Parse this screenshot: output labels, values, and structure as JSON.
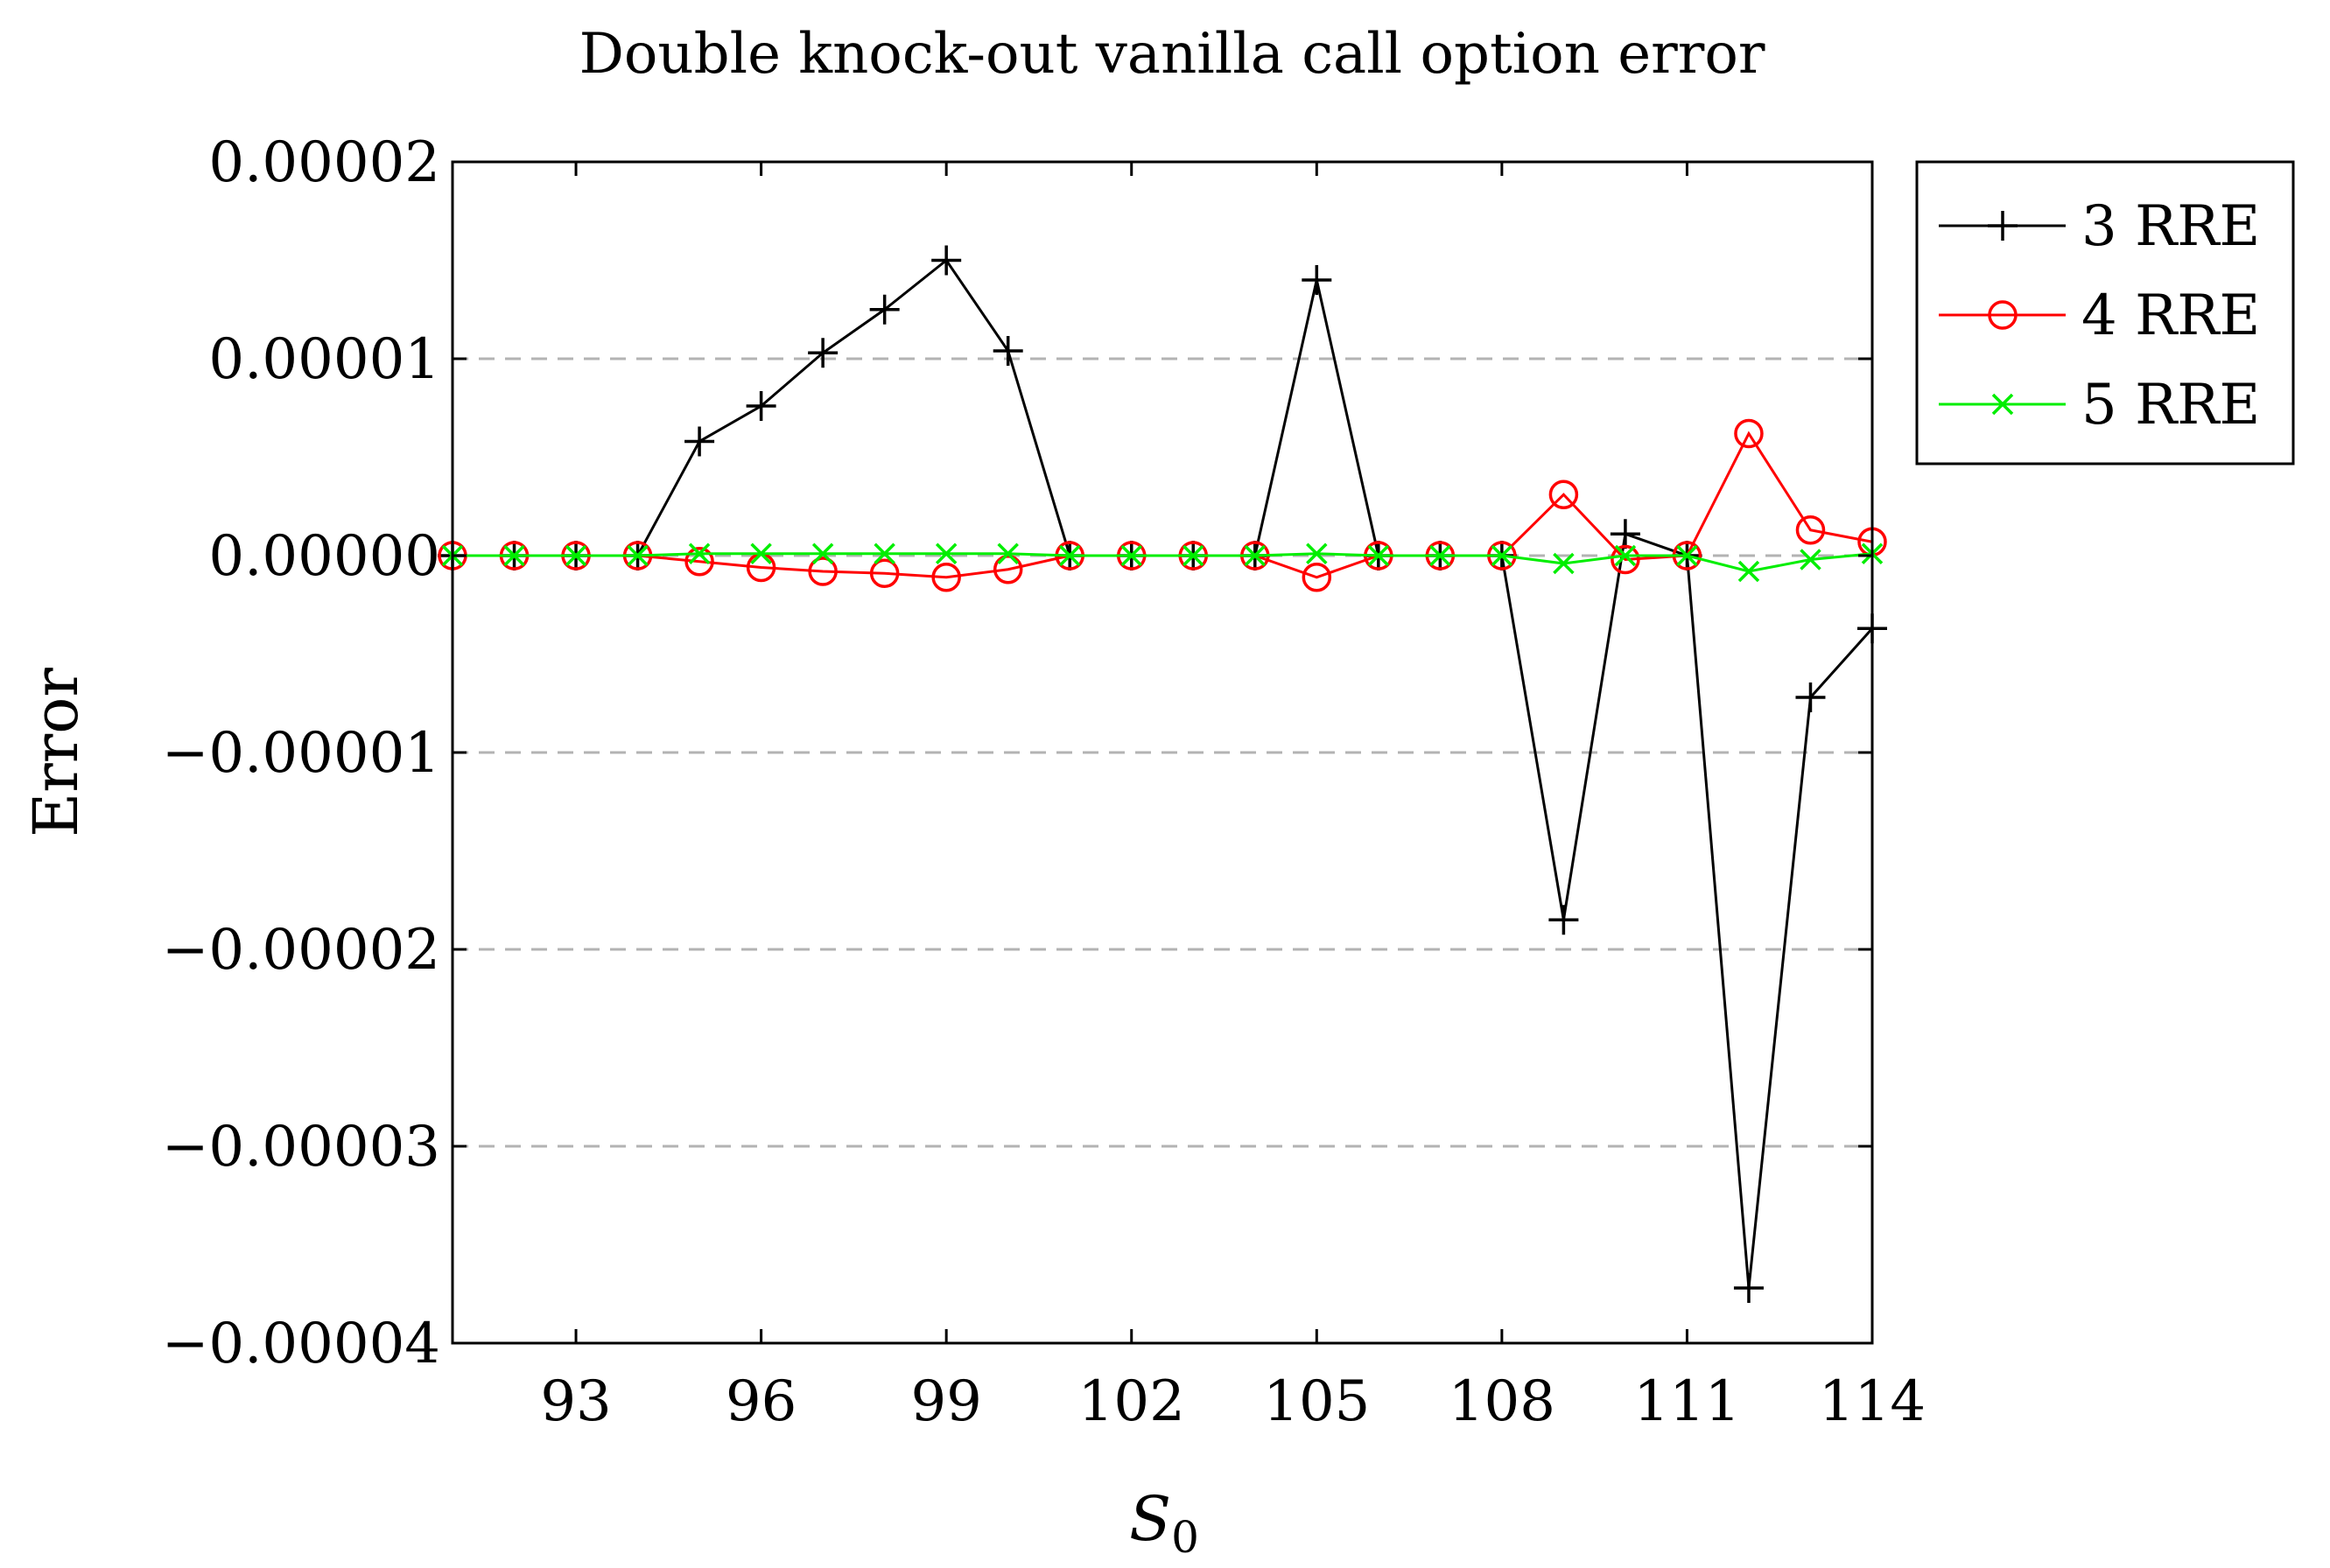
{
  "chart_data": {
    "type": "line",
    "title": "Double knock-out vanilla call option error",
    "xlabel": "S",
    "xlabel_subscript": "0",
    "ylabel": "Error",
    "xlim": [
      91,
      114
    ],
    "ylim": [
      -4e-05,
      2e-05
    ],
    "xticks": [
      93,
      96,
      99,
      102,
      105,
      108,
      111,
      114
    ],
    "yticks": [
      2e-05,
      1e-05,
      0.0,
      -1e-05,
      -2e-05,
      -3e-05,
      -4e-05
    ],
    "ytick_labels": [
      "0.00002",
      "0.00001",
      "0.00000",
      "−0.00001",
      "−0.00002",
      "−0.00003",
      "−0.00004"
    ],
    "grid": "horizontal dashed",
    "legend_position": "outside-top-right",
    "x": [
      91,
      92,
      93,
      94,
      95,
      96,
      97,
      98,
      99,
      100,
      101,
      102,
      103,
      104,
      105,
      106,
      107,
      108,
      109,
      110,
      111,
      112,
      113,
      114
    ],
    "series": [
      {
        "name": "3 RRE",
        "color": "#000000",
        "marker": "plus",
        "values": [
          0,
          0,
          0,
          0,
          5.8e-06,
          7.6e-06,
          1.03e-05,
          1.25e-05,
          1.5e-05,
          1.04e-05,
          0,
          0,
          0,
          0,
          1.4e-05,
          0,
          0,
          0,
          -1.85e-05,
          1.1e-06,
          0,
          -3.72e-05,
          -7.2e-06,
          -3.7e-06
        ]
      },
      {
        "name": "4 RRE",
        "color": "#ff0000",
        "marker": "circle",
        "values": [
          0,
          0,
          0,
          0,
          -3e-07,
          -6e-07,
          -8e-07,
          -9e-07,
          -1.1e-06,
          -7e-07,
          0,
          0,
          0,
          0,
          -1.1e-06,
          0,
          0,
          0,
          3.1e-06,
          -2e-07,
          0,
          6.2e-06,
          1.3e-06,
          7e-07
        ]
      },
      {
        "name": "5 RRE",
        "color": "#00ee00",
        "marker": "cross",
        "values": [
          0,
          0,
          0,
          0,
          1e-07,
          1e-07,
          1e-07,
          1e-07,
          1e-07,
          1e-07,
          0,
          0,
          0,
          0,
          1e-07,
          0,
          0,
          0,
          -4e-07,
          0,
          0,
          -8e-07,
          -2e-07,
          1e-07
        ]
      }
    ]
  }
}
